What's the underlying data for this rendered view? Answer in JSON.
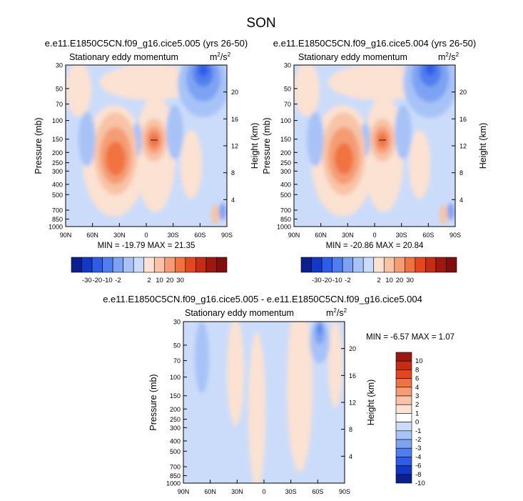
{
  "figure": {
    "title": "SON"
  },
  "chart_data": [
    {
      "type": "heatmap",
      "title": "e.e11.E1850C5CN.f09_g16.cice5.005 (yrs 26-50)",
      "subtitle": "Stationary eddy momentum",
      "units": "m²/s²",
      "units_base": "m",
      "units_sup1": "2",
      "units_mid": "/s",
      "units_sup2": "2",
      "xlabel": "",
      "ylabel": "Pressure (mb)",
      "ylabel_right": "Height (km)",
      "x_ticks": [
        "90N",
        "60N",
        "30N",
        "0",
        "30S",
        "60S",
        "90S"
      ],
      "y_ticks": [
        "30",
        "50",
        "70",
        "100",
        "150",
        "200",
        "250",
        "300",
        "400",
        "500",
        "700",
        "850",
        "1000"
      ],
      "height_ticks": [
        "20",
        "16",
        "12",
        "8",
        "4"
      ],
      "min": -19.79,
      "max": 21.35,
      "stats_text": "MIN = -19.79  MAX = 21.35",
      "colorbar_labels": [
        "-30",
        "-20",
        "-10",
        "-2",
        "2",
        "10",
        "20",
        "30"
      ],
      "colorbar_colors": [
        "#0b1f8e",
        "#1238c8",
        "#2d5de8",
        "#4f7ef0",
        "#7ea2f3",
        "#a7c2f6",
        "#cbdcfa",
        "#fbe2d2",
        "#f8c3a6",
        "#f59c74",
        "#f0733f",
        "#e4471f",
        "#c62b14",
        "#9e1810",
        "#7e0f0d"
      ]
    },
    {
      "type": "heatmap",
      "title": "e.e11.E1850C5CN.f09_g16.cice5.004 (yrs 26-50)",
      "subtitle": "Stationary eddy momentum",
      "units": "m²/s²",
      "units_base": "m",
      "units_sup1": "2",
      "units_mid": "/s",
      "units_sup2": "2",
      "xlabel": "",
      "ylabel": "Pressure (mb)",
      "ylabel_right": "Height (km)",
      "x_ticks": [
        "90N",
        "60N",
        "30N",
        "0",
        "30S",
        "60S",
        "90S"
      ],
      "y_ticks": [
        "30",
        "50",
        "70",
        "100",
        "150",
        "200",
        "250",
        "300",
        "400",
        "500",
        "700",
        "850",
        "1000"
      ],
      "height_ticks": [
        "20",
        "16",
        "12",
        "8",
        "4"
      ],
      "min": -20.86,
      "max": 20.84,
      "stats_text": "MIN = -20.86  MAX = 20.84",
      "colorbar_labels": [
        "-30",
        "-20",
        "-10",
        "-2",
        "2",
        "10",
        "20",
        "30"
      ],
      "colorbar_colors": [
        "#0b1f8e",
        "#1238c8",
        "#2d5de8",
        "#4f7ef0",
        "#7ea2f3",
        "#a7c2f6",
        "#cbdcfa",
        "#fbe2d2",
        "#f8c3a6",
        "#f59c74",
        "#f0733f",
        "#e4471f",
        "#c62b14",
        "#9e1810",
        "#7e0f0d"
      ]
    },
    {
      "type": "heatmap",
      "title": "e.e11.E1850C5CN.f09_g16.cice5.005 - e.e11.E1850C5CN.f09_g16.cice5.004",
      "subtitle": "Stationary eddy momentum",
      "units": "m²/s²",
      "units_base": "m",
      "units_sup1": "2",
      "units_mid": "/s",
      "units_sup2": "2",
      "xlabel": "",
      "ylabel": "Pressure (mb)",
      "ylabel_right": "Height (km)",
      "x_ticks": [
        "90N",
        "60N",
        "30N",
        "0",
        "30S",
        "60S",
        "90S"
      ],
      "y_ticks": [
        "30",
        "50",
        "70",
        "100",
        "150",
        "200",
        "250",
        "300",
        "400",
        "500",
        "700",
        "850",
        "1000"
      ],
      "height_ticks": [
        "20",
        "16",
        "12",
        "8",
        "4"
      ],
      "min": -6.57,
      "max": 1.07,
      "stats_text": "MIN = -6.57  MAX =  1.07",
      "colorbar_labels": [
        "10",
        "8",
        "6",
        "4",
        "3",
        "2",
        "1",
        "0",
        "-1",
        "-2",
        "-3",
        "-4",
        "-6",
        "-8",
        "-10"
      ],
      "colorbar_colors": [
        "#9e1810",
        "#c62b14",
        "#e4471f",
        "#f0733f",
        "#f59c74",
        "#f8c3a6",
        "#fbe2d2",
        "#ffffff",
        "#cbdcfa",
        "#a7c2f6",
        "#7ea2f3",
        "#4f7ef0",
        "#2d5de8",
        "#1238c8",
        "#0b1f8e"
      ]
    }
  ]
}
